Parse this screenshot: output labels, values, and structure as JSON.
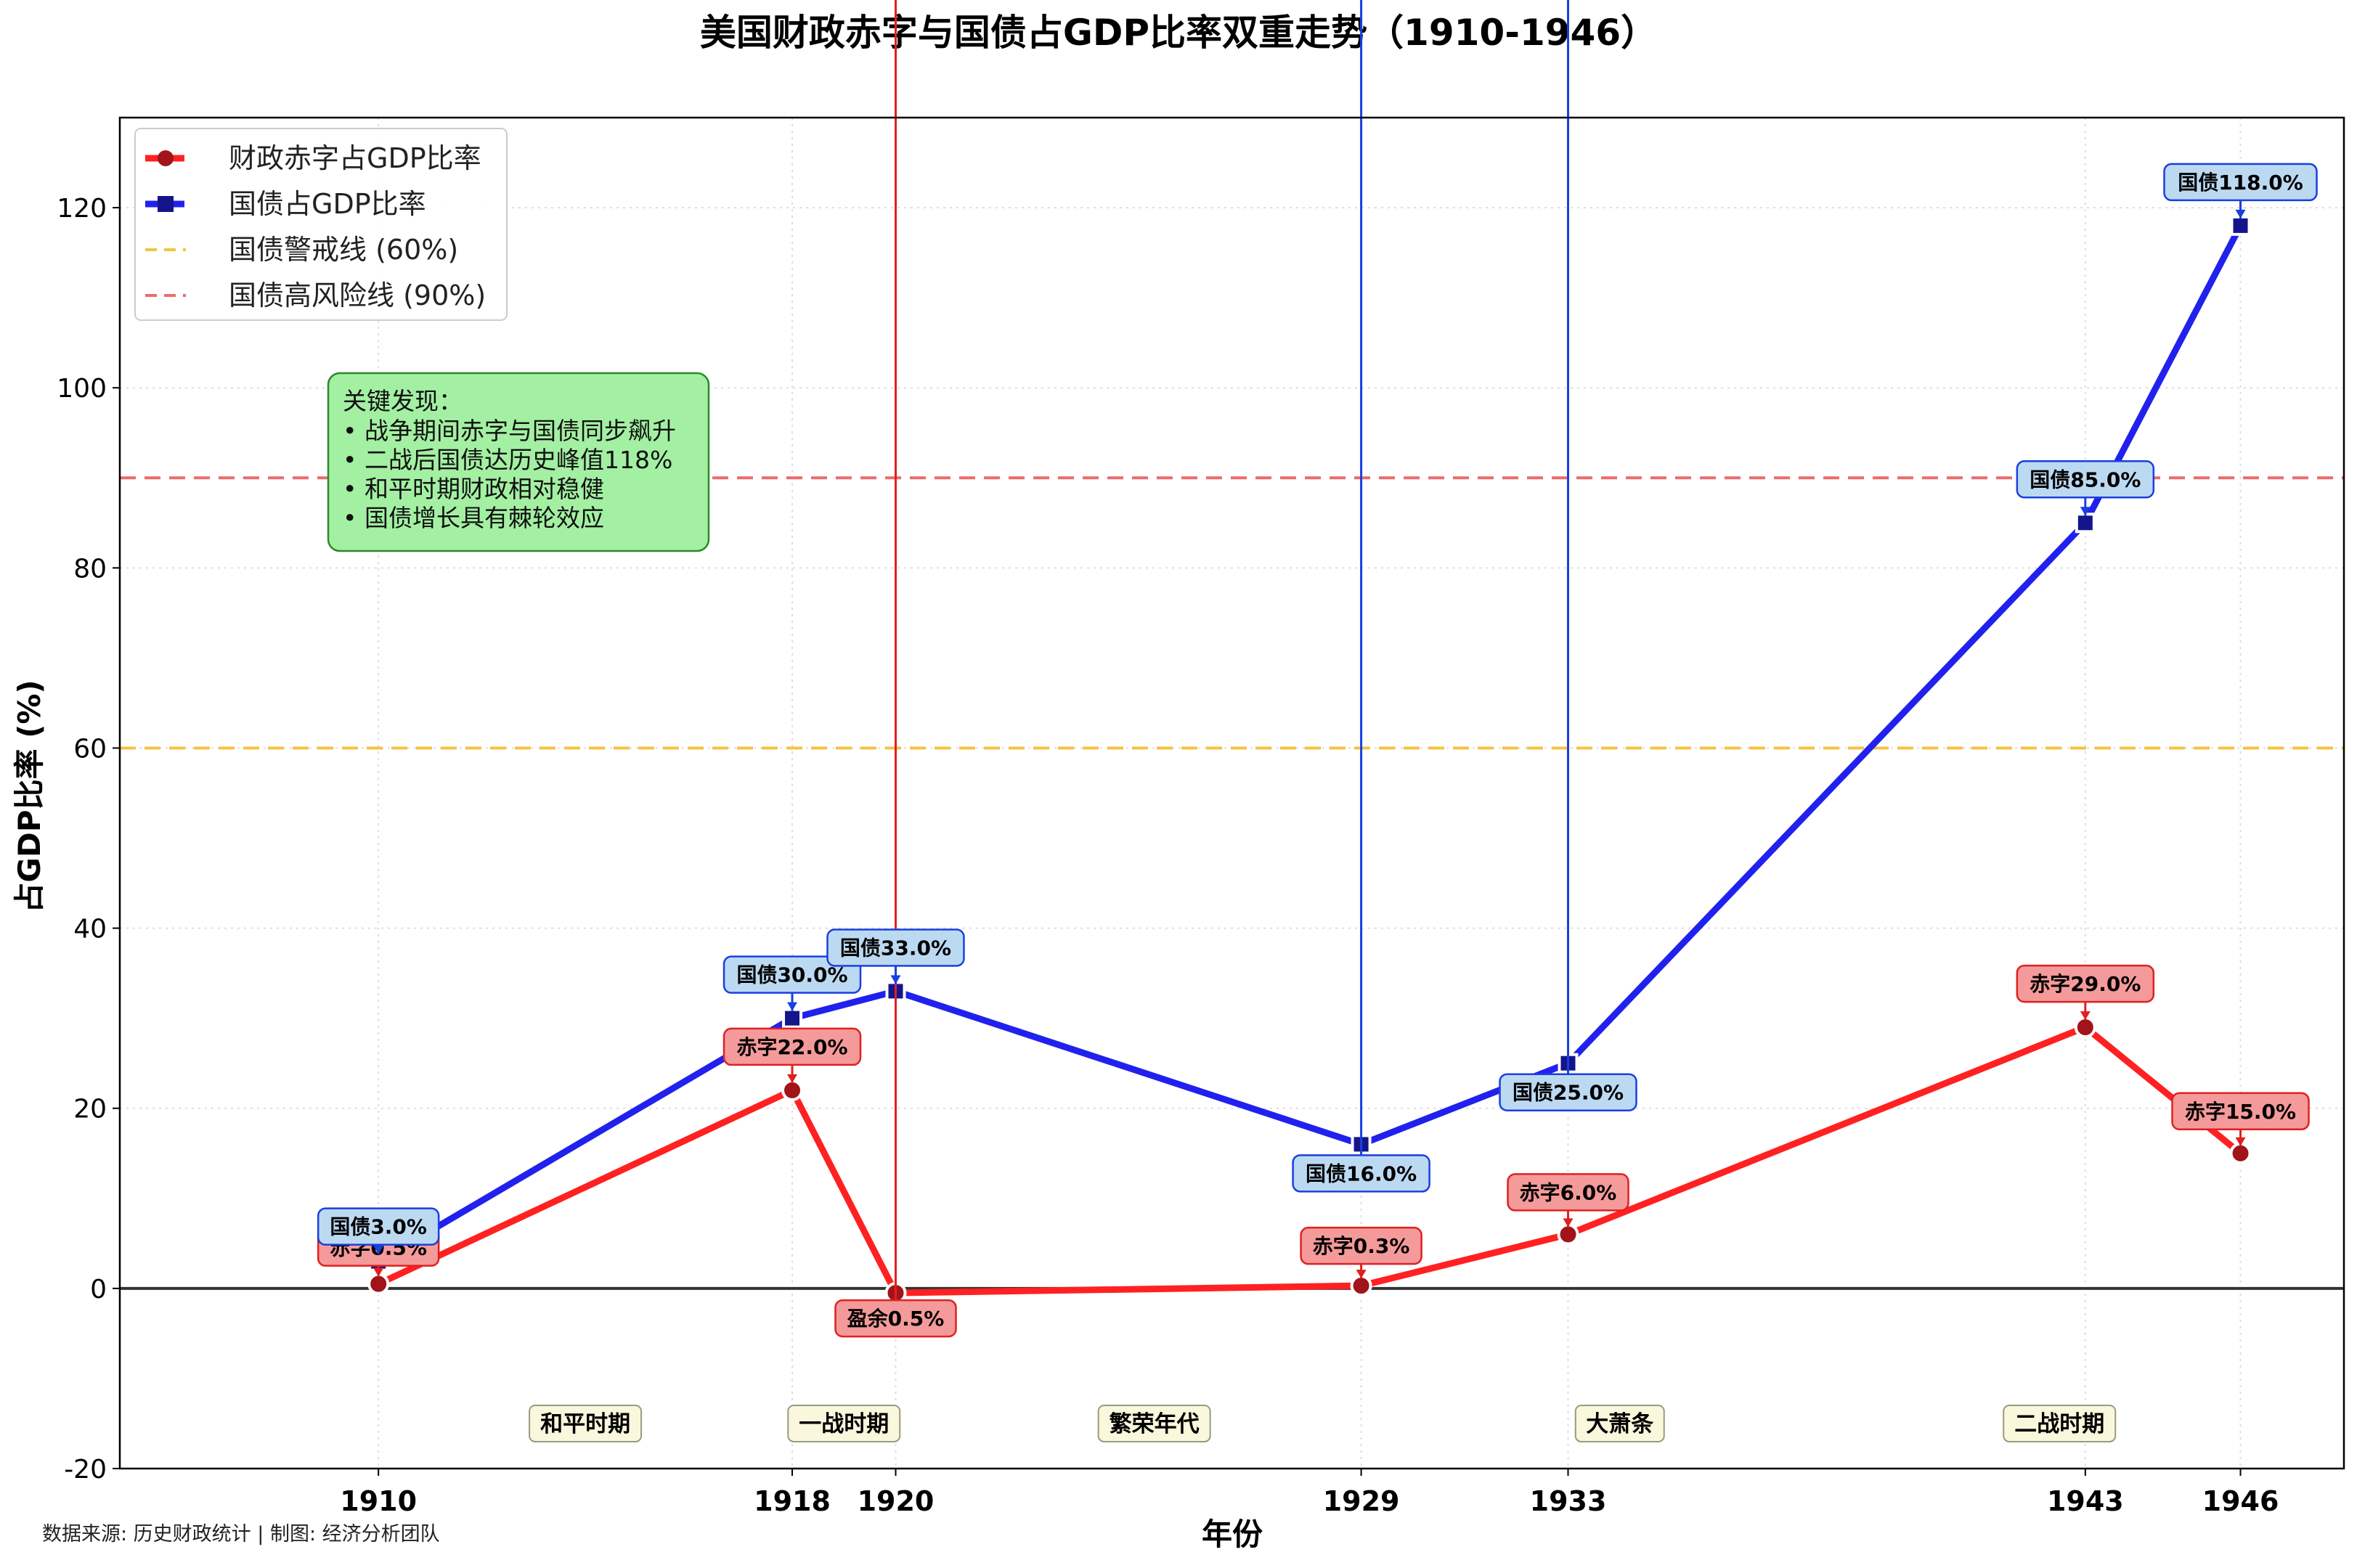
{
  "chart_data": {
    "type": "line",
    "title": "美国财政赤字与国债占GDP比率双重走势（1910-1946）",
    "xlabel": "年份",
    "ylabel": "占GDP比率 (%)",
    "ylim": [
      -20,
      130
    ],
    "xlim": [
      1905.0,
      1948.0
    ],
    "yticks": [
      -20,
      0,
      20,
      40,
      60,
      80,
      100,
      120
    ],
    "x": [
      1910,
      1918,
      1920,
      1929,
      1933,
      1943,
      1946
    ],
    "x_tick_labels": [
      "1910",
      "1918",
      "1920",
      "1929",
      "1933",
      "1943",
      "1946"
    ],
    "grid": true,
    "legend_position": "top-left",
    "series": [
      {
        "name": "财政赤字占GDP比率",
        "color": "#ff2121",
        "marker_color": "#a0141a",
        "values": [
          0.5,
          22.0,
          -0.5,
          0.3,
          6.0,
          29.0,
          15.0
        ],
        "labels": [
          "赤字0.5%",
          "赤字22.0%",
          "盈余0.5%",
          "赤字0.3%",
          "赤字6.0%",
          "赤字29.0%",
          "赤字15.0%"
        ]
      },
      {
        "name": "国债占GDP比率",
        "color": "#2121ee",
        "marker_color": "#14148c",
        "values": [
          3.0,
          30.0,
          33.0,
          16.0,
          25.0,
          85.0,
          118.0
        ],
        "labels": [
          "国债3.0%",
          "国债30.0%",
          "国债33.0%",
          "国债16.0%",
          "国债25.0%",
          "国债85.0%",
          "国债118.0%"
        ]
      }
    ],
    "reference_lines": [
      {
        "name": "国债警戒线 (60%)",
        "value": 60,
        "color": "#f5c242"
      },
      {
        "name": "国债高风险线 (90%)",
        "value": 90,
        "color": "#ec6b6b"
      }
    ],
    "periods": [
      {
        "label": "和平时期",
        "x": 1914.0
      },
      {
        "label": "一战时期",
        "x": 1919.0
      },
      {
        "label": "繁荣年代",
        "x": 1925.0
      },
      {
        "label": "大萧条",
        "x": 1934.0
      },
      {
        "label": "二战时期",
        "x": 1942.5
      }
    ],
    "annotation": {
      "title": "关键发现：",
      "lines": [
        "• 战争期间赤字与国债同步飙升",
        "• 二战后国债达历史峰值118%",
        "• 和平时期财政相对稳健",
        "• 国债增长具有棘轮效应"
      ]
    },
    "source": "数据来源: 历史财政统计 | 制图: 经济分析团队"
  }
}
